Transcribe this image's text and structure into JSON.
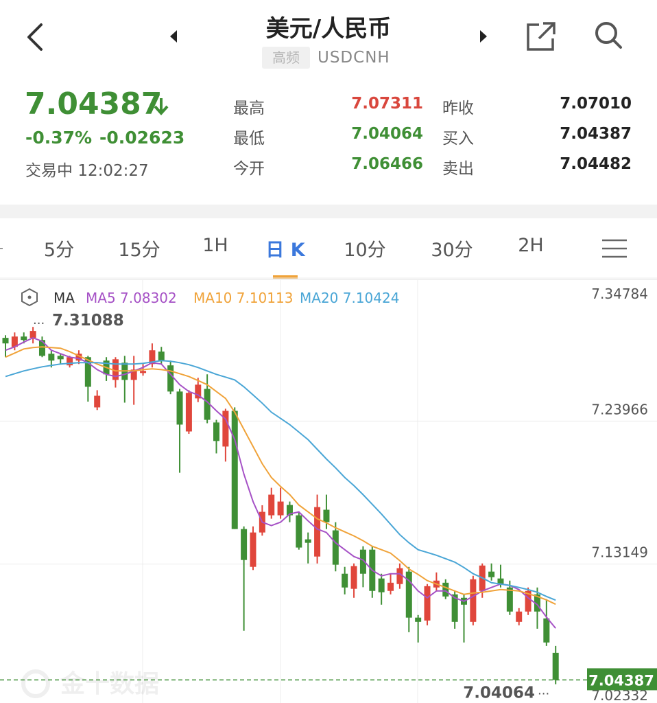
{
  "header": {
    "title": "美元/人民币",
    "badge": "高频",
    "symbol": "USDCNH"
  },
  "quote": {
    "price": "7.04387",
    "change_pct": "-0.37%",
    "change": "-0.02623",
    "status": "交易中",
    "time": "12:02:27"
  },
  "stats": [
    {
      "label": "最高",
      "value": "7.07311",
      "color": "#d9473d"
    },
    {
      "label": "最低",
      "value": "7.04064",
      "color": "#3f8f35"
    },
    {
      "label": "今开",
      "value": "7.06466",
      "color": "#3f8f35"
    },
    {
      "label": "昨收",
      "value": "7.07010",
      "color": "#222222"
    },
    {
      "label": "买入",
      "value": "7.04387",
      "color": "#222222"
    },
    {
      "label": "卖出",
      "value": "7.04482",
      "color": "#222222"
    }
  ],
  "tabs": [
    "5分",
    "15分",
    "1H",
    "日 K",
    "10分",
    "30分",
    "2H"
  ],
  "active_tab": "日 K",
  "watermark": "金十数据",
  "chart_data": {
    "type": "candlestick",
    "indicator": "MA",
    "categories": [
      null,
      null,
      null,
      null,
      null,
      null,
      null,
      null,
      null,
      null,
      null,
      null,
      null,
      null,
      null,
      null,
      null,
      null,
      null,
      null,
      null,
      null,
      null,
      null,
      null,
      null,
      null,
      null,
      null,
      null,
      null,
      null,
      null,
      null,
      null,
      null,
      null,
      null,
      null,
      null,
      null,
      null,
      null,
      null,
      null,
      null,
      null,
      null,
      null,
      null,
      null,
      null,
      null,
      null,
      null,
      null,
      null,
      null,
      null,
      null,
      null
    ],
    "open": [
      7.3026,
      7.2958,
      7.3036,
      7.3026,
      7.301,
      7.2906,
      7.289,
      7.2818,
      7.2854,
      7.288,
      7.25,
      7.2854,
      7.2708,
      7.2838,
      7.2708,
      7.276,
      7.2828,
      7.2922,
      7.2818,
      7.262,
      7.2318,
      7.2568,
      7.264,
      7.2386,
      7.2204,
      7.2474,
      7.158,
      7.1294,
      7.1554,
      7.1684,
      7.1684,
      7.1762,
      7.1684,
      7.1502,
      7.1372,
      7.1726,
      7.157,
      7.1242,
      7.1128,
      7.1424,
      7.1424,
      7.1206,
      7.1112,
      7.1164,
      7.1258,
      7.091,
      7.0888,
      7.1138,
      7.1174,
      7.1086,
      7.106,
      7.0878,
      7.1112,
      7.1258,
      7.1206,
      7.1138,
      7.0878,
      7.0956,
      7.1086,
      7.0904,
      7.0644
    ],
    "high": [
      7.3046,
      7.3067,
      7.3067,
      7.31088,
      7.3036,
      7.2932,
      7.2906,
      7.289,
      7.2932,
      7.289,
      7.263,
      7.288,
      7.288,
      7.289,
      7.289,
      7.2828,
      7.2984,
      7.2958,
      7.2854,
      7.264,
      7.263,
      7.2724,
      7.275,
      7.2406,
      7.249,
      7.25,
      7.16,
      7.16,
      7.176,
      7.1892,
      7.1892,
      7.1788,
      7.171,
      7.1554,
      7.184,
      7.184,
      7.1632,
      7.1294,
      7.132,
      7.145,
      7.145,
      7.1242,
      7.1242,
      7.132,
      7.1294,
      7.093,
      7.1164,
      7.1252,
      7.12,
      7.1112,
      7.1086,
      7.1226,
      7.132,
      7.132,
      7.131,
      7.119,
      7.0982,
      7.1138,
      7.1138,
      7.105,
      7.0696
    ],
    "low": [
      7.288,
      7.2932,
      7.2984,
      7.2984,
      7.288,
      7.2802,
      7.2828,
      7.2802,
      7.2828,
      7.2544,
      7.248,
      7.27,
      7.265,
      7.2536,
      7.252,
      7.274,
      7.2802,
      7.2828,
      7.26,
      7.2006,
      7.23,
      7.254,
      7.238,
      7.2152,
      7.209,
      7.158,
      7.0811,
      7.127,
      7.153,
      7.1658,
      7.1658,
      7.1632,
      7.1424,
      7.132,
      7.132,
      7.158,
      7.126,
      7.1086,
      7.106,
      7.114,
      7.106,
      7.1008,
      7.1086,
      7.1128,
      7.08,
      7.0722,
      7.0852,
      7.1112,
      7.105,
      7.0826,
      7.0722,
      7.0852,
      7.106,
      7.119,
      7.1138,
      7.093,
      7.0852,
      7.093,
      7.0826,
      7.0696,
      7.04064
    ],
    "close": [
      7.2984,
      7.3036,
      7.301,
      7.3078,
      7.289,
      7.2854,
      7.2864,
      7.288,
      7.2906,
      7.2656,
      7.2588,
      7.275,
      7.2864,
      7.2708,
      7.2786,
      7.2776,
      7.2932,
      7.2854,
      7.262,
      7.237,
      7.261,
      7.2672,
      7.2406,
      7.2246,
      7.2474,
      7.158,
      7.1346,
      7.1554,
      7.171,
      7.184,
      7.1788,
      7.1684,
      7.144,
      7.1476,
      7.1746,
      7.1632,
      7.131,
      7.1138,
      7.13,
      7.1242,
      7.1112,
      7.1102,
      7.1174,
      7.1284,
      7.091,
      7.0878,
      7.1148,
      7.119,
      7.107,
      7.0878,
      7.1008,
      7.12,
      7.1304,
      7.1216,
      7.1164,
      7.0956,
      7.0956,
      7.1112,
      7.0956,
      7.0722,
      7.04387
    ],
    "up_color": "#e0463b",
    "down_color": "#3f8f35",
    "series": [
      {
        "name": "MA5",
        "color": "#a652c6",
        "legend_value": 7.08302,
        "values": [
          7.2932,
          7.2958,
          7.2994,
          7.3026,
          7.3,
          7.2932,
          7.2906,
          7.288,
          7.287,
          7.2838,
          7.2786,
          7.275,
          7.2734,
          7.275,
          7.2776,
          7.2802,
          7.2838,
          7.2828,
          7.275,
          7.2672,
          7.262,
          7.2594,
          7.2542,
          7.2474,
          7.2412,
          7.2256,
          7.1996,
          7.1788,
          7.1632,
          7.1606,
          7.1632,
          7.1694,
          7.171,
          7.1642,
          7.158,
          7.1554,
          7.1476,
          7.1424,
          7.1372,
          7.1346,
          7.1268,
          7.1226,
          7.1242,
          7.1242,
          7.119,
          7.1112,
          7.106,
          7.1112,
          7.1112,
          7.106,
          7.1034,
          7.107,
          7.1112,
          7.1138,
          7.1164,
          7.1154,
          7.1122,
          7.106,
          7.1008,
          7.0914,
          7.083
        ]
      },
      {
        "name": "MA10",
        "color": "#f0a33a",
        "legend_value": 7.10113,
        "values": [
          7.288,
          7.2911,
          7.2942,
          7.2953,
          7.2958,
          7.2953,
          7.2948,
          7.2922,
          7.289,
          7.2859,
          7.2828,
          7.2802,
          7.2776,
          7.2776,
          7.2776,
          7.2786,
          7.2792,
          7.2786,
          7.2776,
          7.2755,
          7.2734,
          7.2703,
          7.2672,
          7.262,
          7.2568,
          7.2464,
          7.2334,
          7.2204,
          7.2074,
          7.197,
          7.1902,
          7.184,
          7.1762,
          7.171,
          7.1658,
          7.1627,
          7.159,
          7.1559,
          7.1528,
          7.1492,
          7.145,
          7.1424,
          7.1398,
          7.1341,
          7.1278,
          7.1237,
          7.119,
          7.1164,
          7.1138,
          7.1112,
          7.1086,
          7.1096,
          7.1102,
          7.1112,
          7.1122,
          7.1117,
          7.1112,
          7.1091,
          7.107,
          7.1044,
          7.1011
        ]
      },
      {
        "name": "MA20",
        "color": "#4aa6d6",
        "legend_value": 7.10424,
        "values": [
          7.2734,
          7.2755,
          7.2776,
          7.2792,
          7.2807,
          7.2818,
          7.2828,
          7.2833,
          7.2838,
          7.2838,
          7.2838,
          7.2833,
          7.2828,
          7.2828,
          7.2828,
          7.2833,
          7.2844,
          7.2854,
          7.2849,
          7.2838,
          7.2823,
          7.2802,
          7.2776,
          7.275,
          7.2729,
          7.2708,
          7.2656,
          7.2594,
          7.2532,
          7.2464,
          7.2417,
          7.237,
          7.2313,
          7.2256,
          7.2183,
          7.211,
          7.2043,
          7.197,
          7.1908,
          7.184,
          7.1767,
          7.1694,
          7.1616,
          7.1538,
          7.1476,
          7.1424,
          7.1403,
          7.1382,
          7.1356,
          7.133,
          7.1289,
          7.1242,
          7.1211,
          7.1174,
          7.1164,
          7.1154,
          7.1138,
          7.1122,
          7.1102,
          7.107,
          7.1042
        ]
      }
    ],
    "ylim": [
      7.02332,
      7.34784
    ],
    "yticks": [
      7.34784,
      7.23966,
      7.13149,
      7.02332
    ],
    "grid": true,
    "max_label": 7.31088,
    "min_label": 7.04064,
    "last_price": 7.04387
  }
}
